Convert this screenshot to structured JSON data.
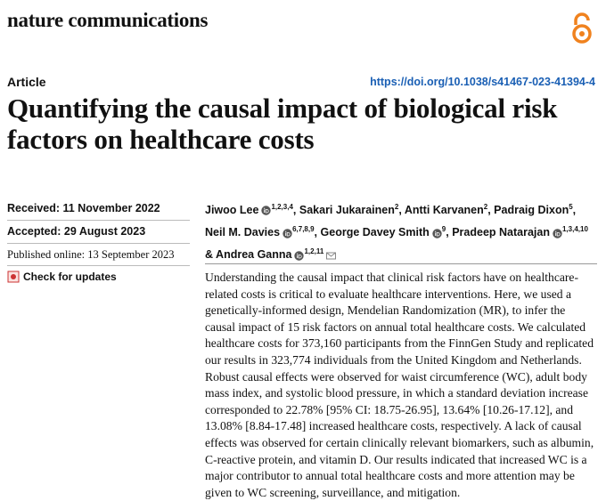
{
  "header": {
    "journal": "nature communications",
    "article_type": "Article",
    "doi": "https://doi.org/10.1038/s41467-023-41394-4"
  },
  "title": "Quantifying the causal impact of biological risk factors on healthcare costs",
  "dates": {
    "received": "Received: 11 November 2022",
    "accepted": "Accepted: 29 August 2023",
    "published": "Published online: 13 September 2023"
  },
  "check_updates": "Check for updates",
  "authors": [
    {
      "name": "Jiwoo Lee",
      "orcid": true,
      "affiliations": "1,2,3,4",
      "after": ","
    },
    {
      "name": "Sakari Jukarainen",
      "orcid": false,
      "affiliations": "2",
      "after": ","
    },
    {
      "name": "Antti Karvanen",
      "orcid": false,
      "affiliations": "2",
      "after": ","
    },
    {
      "name": "Padraig Dixon",
      "orcid": false,
      "affiliations": "5",
      "after": ","
    },
    {
      "name": "Neil M. Davies",
      "orcid": true,
      "affiliations": "6,7,8,9",
      "after": ","
    },
    {
      "name": "George Davey Smith",
      "orcid": true,
      "affiliations": "9",
      "after": ","
    },
    {
      "name": "Pradeep Natarajan",
      "orcid": true,
      "affiliations": "1,3,4,10",
      "after": "&"
    },
    {
      "name": "Andrea Ganna",
      "orcid": true,
      "affiliations": "1,2,11",
      "email": true
    }
  ],
  "abstract": "Understanding the causal impact that clinical risk factors have on healthcare-related costs is critical to evaluate healthcare interventions. Here, we used a genetically-informed design, Mendelian Randomization (MR), to infer the causal impact of 15 risk factors on annual total healthcare costs. We calculated healthcare costs for 373,160 participants from the FinnGen Study and replicated our results in 323,774 individuals from the United Kingdom and Netherlands. Robust causal effects were observed for waist circumference (WC), adult body mass index, and systolic blood pressure, in which a standard deviation increase corresponded to 22.78% [95% CI: 18.75-26.95], 13.64% [10.26-17.12], and 13.08% [8.84-17.48] increased healthcare costs, respectively. A lack of causal effects was observed for certain clinically relevant biomarkers, such as albumin, C-reactive protein, and vitamin D. Our results indicated that increased WC is a major contributor to annual total healthcare costs and more attention may be given to WC screening, surveillance, and mitigation."
}
